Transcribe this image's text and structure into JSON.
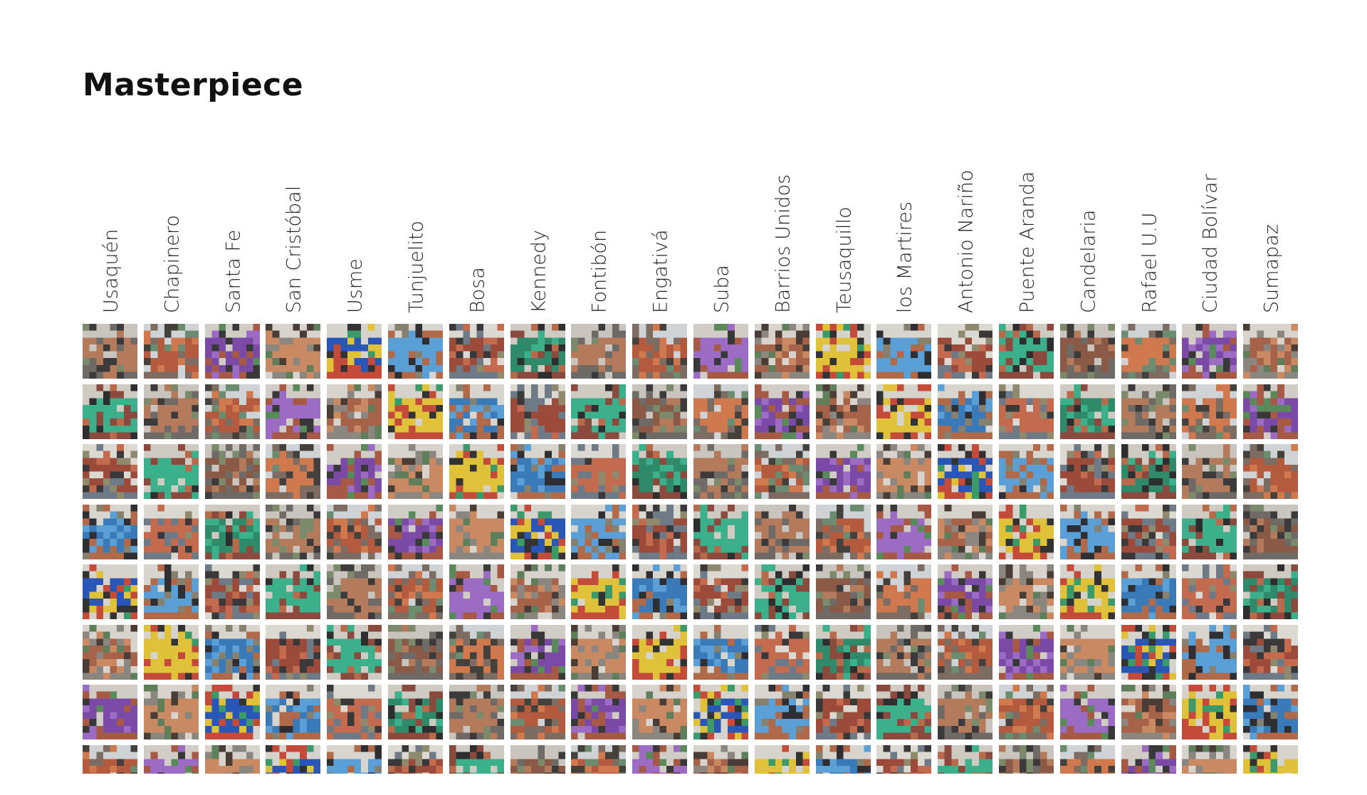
{
  "title": "Masterpiece",
  "columns": [
    {
      "label": "Usaquén"
    },
    {
      "label": "Chapinero"
    },
    {
      "label": "Santa Fe"
    },
    {
      "label": "San Cristóbal"
    },
    {
      "label": "Usme"
    },
    {
      "label": "Tunjuelito"
    },
    {
      "label": "Bosa"
    },
    {
      "label": "Kennedy"
    },
    {
      "label": "Fontibón"
    },
    {
      "label": "Engativá"
    },
    {
      "label": "Suba"
    },
    {
      "label": "Barrios Unidos"
    },
    {
      "label": "Teusaquillo"
    },
    {
      "label": "los Martires"
    },
    {
      "label": "Antonio Nariño"
    },
    {
      "label": "Puente Aranda"
    },
    {
      "label": "Candelaria"
    },
    {
      "label": "Rafael U.U"
    },
    {
      "label": "Ciudad Bolívar"
    },
    {
      "label": "Sumapaz"
    }
  ],
  "grid": {
    "rows": 8,
    "palettes": [
      [
        "#8a5a46",
        "#b37a5c",
        "#6f6a66",
        "#c9c4bd",
        "#3c3a3a",
        "#7a8a6a"
      ],
      [
        "#a6634a",
        "#c98a63",
        "#8c8680",
        "#d8d3cc",
        "#4a3d36",
        "#5f7e5a"
      ],
      [
        "#9c4a3a",
        "#c46a4e",
        "#6e7a86",
        "#dcd8d2",
        "#3a3838",
        "#8f8a6e"
      ],
      [
        "#b45a3e",
        "#d0784e",
        "#7c6c62",
        "#cfd3d6",
        "#44403c",
        "#6c8c70"
      ],
      [
        "#2a56b8",
        "#e0c23a",
        "#c44a3a",
        "#d6d2cc",
        "#333333",
        "#3c9a6a"
      ],
      [
        "#2f8a6a",
        "#3cb08a",
        "#8a4a3e",
        "#cfcac2",
        "#2e2e2e",
        "#b86a4c"
      ],
      [
        "#7a4aa6",
        "#9c6cc4",
        "#a65a46",
        "#d2ccc6",
        "#383838",
        "#5a8a5a"
      ],
      [
        "#3a7ab8",
        "#5aa0d6",
        "#b06a4a",
        "#d8d4ce",
        "#2f2f33",
        "#86806e"
      ]
    ]
  }
}
